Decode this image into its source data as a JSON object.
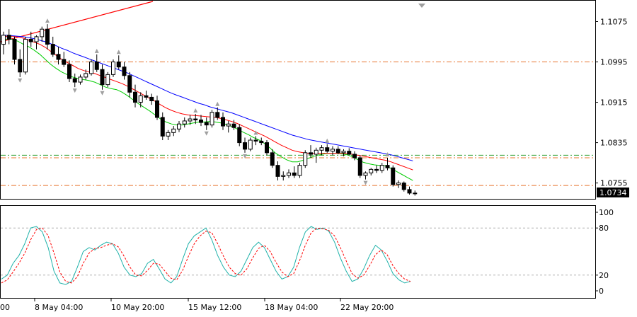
{
  "chart_data": [
    {
      "type": "candlestick",
      "title": "",
      "price_axis": {
        "ticks": [
          1.1075,
          1.0995,
          1.0915,
          1.0835,
          1.0755
        ],
        "tick_labels": [
          "1.1075",
          "1.0995",
          "1.0915",
          "1.0835",
          "1.0755"
        ],
        "range": [
          1.0725,
          1.1115
        ],
        "current_price_label": "1.0734"
      },
      "time_axis": {
        "labels": [
          "8 May 04:00",
          "10 May 20:00",
          "15 May 12:00",
          "18 May 04:00",
          "22 May 20:00"
        ],
        "cut_label": "00"
      },
      "levels": [
        {
          "price": 1.0995,
          "style": "dash-dot",
          "color": "#e8742e"
        },
        {
          "price": 1.081,
          "style": "dash-dot",
          "color": "#2e9e2e"
        },
        {
          "price": 1.0805,
          "style": "dash-dot",
          "color": "#e8742e"
        },
        {
          "price": 1.075,
          "style": "dash-dot",
          "color": "#e8742e"
        }
      ],
      "trend_line": {
        "from_price": 1.1035,
        "to_price": 1.1115,
        "color": "#ff0000"
      },
      "bars": 86,
      "candles": [
        [
          1.103,
          1.1055,
          1.101,
          1.1048
        ],
        [
          1.1048,
          1.106,
          1.103,
          1.104
        ],
        [
          1.104,
          1.1045,
          1.099,
          1.1
        ],
        [
          1.1,
          1.102,
          1.0965,
          1.0975
        ],
        [
          1.0975,
          1.1045,
          1.097,
          1.104
        ],
        [
          1.104,
          1.1055,
          1.1025,
          1.1035
        ],
        [
          1.1035,
          1.1048,
          1.102,
          1.1045
        ],
        [
          1.1045,
          1.1065,
          1.1035,
          1.106
        ],
        [
          1.106,
          1.107,
          1.102,
          1.103
        ],
        [
          1.103,
          1.1045,
          1.1005,
          1.101
        ],
        [
          1.101,
          1.1025,
          1.099,
          1.1
        ],
        [
          1.1,
          1.1015,
          1.0985,
          1.099
        ],
        [
          1.099,
          1.0998,
          1.0955,
          1.0962
        ],
        [
          1.0962,
          1.0972,
          1.0945,
          1.0955
        ],
        [
          1.0955,
          1.097,
          1.095,
          1.0965
        ],
        [
          1.0965,
          1.098,
          1.096,
          1.0972
        ],
        [
          1.0972,
          1.1,
          1.0968,
          1.0995
        ],
        [
          1.0995,
          1.101,
          1.0975,
          1.098
        ],
        [
          1.098,
          1.099,
          1.094,
          1.095
        ],
        [
          1.095,
          1.0975,
          1.0945,
          1.097
        ],
        [
          1.097,
          1.1,
          1.0965,
          1.0995
        ],
        [
          1.0995,
          1.1008,
          1.098,
          1.0985
        ],
        [
          1.0985,
          1.0995,
          1.096,
          1.0968
        ],
        [
          1.0968,
          1.0975,
          1.0925,
          1.0935
        ],
        [
          1.0935,
          1.095,
          1.0905,
          1.0915
        ],
        [
          1.0915,
          1.0935,
          1.0905,
          1.0928
        ],
        [
          1.0928,
          1.0938,
          1.092,
          1.0925
        ],
        [
          1.0925,
          1.0932,
          1.091,
          1.0918
        ],
        [
          1.0918,
          1.0928,
          1.088,
          1.0885
        ],
        [
          1.0885,
          1.0895,
          1.084,
          1.0848
        ],
        [
          1.0848,
          1.086,
          1.084,
          1.0855
        ],
        [
          1.0855,
          1.0868,
          1.0848,
          1.0862
        ],
        [
          1.0862,
          1.0878,
          1.0856,
          1.0872
        ],
        [
          1.0872,
          1.0885,
          1.0865,
          1.0878
        ],
        [
          1.0878,
          1.089,
          1.087,
          1.0882
        ],
        [
          1.0882,
          1.0892,
          1.0872,
          1.088
        ],
        [
          1.088,
          1.089,
          1.0868,
          1.0875
        ],
        [
          1.0875,
          1.0885,
          1.086,
          1.087
        ],
        [
          1.087,
          1.09,
          1.0865,
          1.0895
        ],
        [
          1.0895,
          1.0905,
          1.088,
          1.0885
        ],
        [
          1.0885,
          1.0895,
          1.086,
          1.0868
        ],
        [
          1.0868,
          1.0878,
          1.0855,
          1.0872
        ],
        [
          1.0872,
          1.088,
          1.086,
          1.0865
        ],
        [
          1.0865,
          1.0872,
          1.0828,
          1.0835
        ],
        [
          1.0835,
          1.0845,
          1.0815,
          1.0822
        ],
        [
          1.0822,
          1.0845,
          1.0818,
          1.084
        ],
        [
          1.084,
          1.0848,
          1.083,
          1.0838
        ],
        [
          1.0838,
          1.0845,
          1.083,
          1.0835
        ],
        [
          1.0835,
          1.084,
          1.081,
          1.0815
        ],
        [
          1.0815,
          1.0822,
          1.0785,
          1.079
        ],
        [
          1.079,
          1.0798,
          1.076,
          1.0768
        ],
        [
          1.0768,
          1.0778,
          1.076,
          1.077
        ],
        [
          1.077,
          1.0782,
          1.0765,
          1.0775
        ],
        [
          1.0775,
          1.0788,
          1.0765,
          1.077
        ],
        [
          1.077,
          1.0795,
          1.0765,
          1.079
        ],
        [
          1.079,
          1.082,
          1.0785,
          1.0815
        ],
        [
          1.0815,
          1.083,
          1.0805,
          1.0812
        ],
        [
          1.0812,
          1.0825,
          1.0795,
          1.082
        ],
        [
          1.082,
          1.083,
          1.081,
          1.0825
        ],
        [
          1.0825,
          1.0832,
          1.0815,
          1.0818
        ],
        [
          1.0818,
          1.0828,
          1.081,
          1.0822
        ],
        [
          1.0822,
          1.0828,
          1.0812,
          1.0815
        ],
        [
          1.0815,
          1.0822,
          1.0808,
          1.0818
        ],
        [
          1.0818,
          1.0824,
          1.081,
          1.0812
        ],
        [
          1.0812,
          1.0818,
          1.08,
          1.0805
        ],
        [
          1.0805,
          1.081,
          1.0765,
          1.077
        ],
        [
          1.077,
          1.0778,
          1.0762,
          1.0775
        ],
        [
          1.0775,
          1.0785,
          1.077,
          1.0782
        ],
        [
          1.0782,
          1.079,
          1.0775,
          1.078
        ],
        [
          1.078,
          1.0795,
          1.0775,
          1.079
        ],
        [
          1.079,
          1.0805,
          1.078,
          1.0785
        ],
        [
          1.0785,
          1.079,
          1.0748,
          1.0752
        ],
        [
          1.0752,
          1.076,
          1.0745,
          1.0755
        ],
        [
          1.0755,
          1.0758,
          1.0738,
          1.0742
        ],
        [
          1.0742,
          1.0748,
          1.0732,
          1.0735
        ],
        [
          1.0735,
          1.074,
          1.073,
          1.0734
        ]
      ],
      "moving_averages": [
        {
          "color": "#00cc00",
          "values": [
            1.1038,
            1.104,
            1.104,
            1.1036,
            1.103,
            1.1025,
            1.1018,
            1.101,
            1.1,
            1.099,
            1.0982,
            1.0975,
            1.097,
            1.0965,
            1.0962,
            1.096,
            1.0958,
            1.0955,
            1.095,
            1.0945,
            1.0942,
            1.094,
            1.0935,
            1.0928,
            1.092,
            1.0912,
            1.0905,
            1.0898,
            1.089,
            1.0882,
            1.0876,
            1.0872,
            1.087,
            1.087,
            1.0872,
            1.0874,
            1.0876,
            1.0876,
            1.0877,
            1.0876,
            1.0874,
            1.0871,
            1.0867,
            1.0862,
            1.0856,
            1.0851,
            1.0845,
            1.084,
            1.0833,
            1.0824,
            1.0814,
            1.0807,
            1.0801,
            1.0797,
            1.0797,
            1.08,
            1.0804,
            1.0808,
            1.0811,
            1.0813,
            1.0814,
            1.0814,
            1.0813,
            1.0811,
            1.0807,
            1.0801,
            1.0796,
            1.0793,
            1.0791,
            1.079,
            1.0789,
            1.0784,
            1.0778,
            1.0772,
            1.0766,
            1.076
          ]
        },
        {
          "color": "#ff0000",
          "values": [
            1.1045,
            1.1046,
            1.1046,
            1.1045,
            1.1042,
            1.1038,
            1.1034,
            1.103,
            1.1024,
            1.1016,
            1.1008,
            1.1,
            1.0994,
            1.0988,
            1.0982,
            1.0978,
            1.0975,
            1.0972,
            1.0968,
            1.0964,
            1.096,
            1.0956,
            1.0952,
            1.0947,
            1.0941,
            1.0935,
            1.0929,
            1.0923,
            1.0917,
            1.091,
            1.0904,
            1.0899,
            1.0895,
            1.0892,
            1.089,
            1.0889,
            1.0888,
            1.0887,
            1.0886,
            1.0885,
            1.0883,
            1.088,
            1.0877,
            1.0873,
            1.0868,
            1.0863,
            1.0858,
            1.0853,
            1.0848,
            1.0842,
            1.0836,
            1.083,
            1.0825,
            1.082,
            1.0817,
            1.0815,
            1.0814,
            1.0814,
            1.0814,
            1.0814,
            1.0814,
            1.0814,
            1.0814,
            1.0813,
            1.0812,
            1.081,
            1.0808,
            1.0806,
            1.0804,
            1.0802,
            1.08,
            1.0797,
            1.0793,
            1.0789,
            1.0785,
            1.0781
          ]
        },
        {
          "color": "#0000ff",
          "values": [
            1.1048,
            1.1048,
            1.1047,
            1.1046,
            1.1045,
            1.1043,
            1.1041,
            1.1038,
            1.1035,
            1.1031,
            1.1027,
            1.1022,
            1.1018,
            1.1013,
            1.1009,
            1.1005,
            1.1001,
            1.0997,
            1.0993,
            1.0989,
            1.0985,
            1.0981,
            1.0977,
            1.0973,
            1.0968,
            1.0963,
            1.0958,
            1.0953,
            1.0948,
            1.0943,
            1.0938,
            1.0933,
            1.0929,
            1.0925,
            1.0921,
            1.0917,
            1.0913,
            1.091,
            1.0906,
            1.0903,
            1.09,
            1.0897,
            1.0894,
            1.089,
            1.0886,
            1.0882,
            1.0878,
            1.0874,
            1.087,
            1.0866,
            1.0862,
            1.0858,
            1.0854,
            1.085,
            1.0847,
            1.0844,
            1.0841,
            1.0839,
            1.0837,
            1.0835,
            1.0833,
            1.0831,
            1.0829,
            1.0827,
            1.0825,
            1.0823,
            1.0821,
            1.0819,
            1.0817,
            1.0815,
            1.0813,
            1.0811,
            1.0808,
            1.0805,
            1.0802,
            1.0799
          ]
        }
      ]
    },
    {
      "type": "line",
      "name": "stochastic",
      "ylim": [
        0,
        100
      ],
      "tick_labels": [
        "100",
        "80",
        "20",
        "0"
      ],
      "ticks": [
        100,
        80,
        20,
        0
      ],
      "levels": [
        80,
        20
      ],
      "series": [
        {
          "color": "#20b2aa",
          "values": [
            15,
            20,
            35,
            45,
            60,
            80,
            82,
            75,
            55,
            25,
            10,
            8,
            12,
            30,
            50,
            55,
            52,
            58,
            62,
            60,
            48,
            30,
            20,
            18,
            22,
            35,
            40,
            28,
            15,
            10,
            18,
            40,
            60,
            70,
            75,
            80,
            65,
            45,
            30,
            20,
            18,
            25,
            40,
            55,
            62,
            55,
            40,
            25,
            15,
            18,
            30,
            55,
            75,
            82,
            78,
            80,
            76,
            62,
            42,
            25,
            12,
            15,
            28,
            45,
            58,
            52,
            38,
            22,
            14,
            10,
            12
          ]
        },
        {
          "color": "#ff0000",
          "values": [
            10,
            14,
            24,
            35,
            48,
            65,
            78,
            80,
            70,
            48,
            24,
            12,
            10,
            18,
            35,
            48,
            54,
            55,
            58,
            60,
            56,
            44,
            30,
            20,
            19,
            26,
            35,
            34,
            25,
            16,
            14,
            26,
            44,
            60,
            70,
            76,
            74,
            60,
            44,
            30,
            22,
            20,
            28,
            42,
            54,
            58,
            50,
            36,
            24,
            18,
            22,
            38,
            58,
            74,
            80,
            79,
            77,
            70,
            55,
            38,
            22,
            16,
            20,
            32,
            46,
            52,
            46,
            32,
            22,
            15,
            12
          ]
        }
      ]
    }
  ]
}
